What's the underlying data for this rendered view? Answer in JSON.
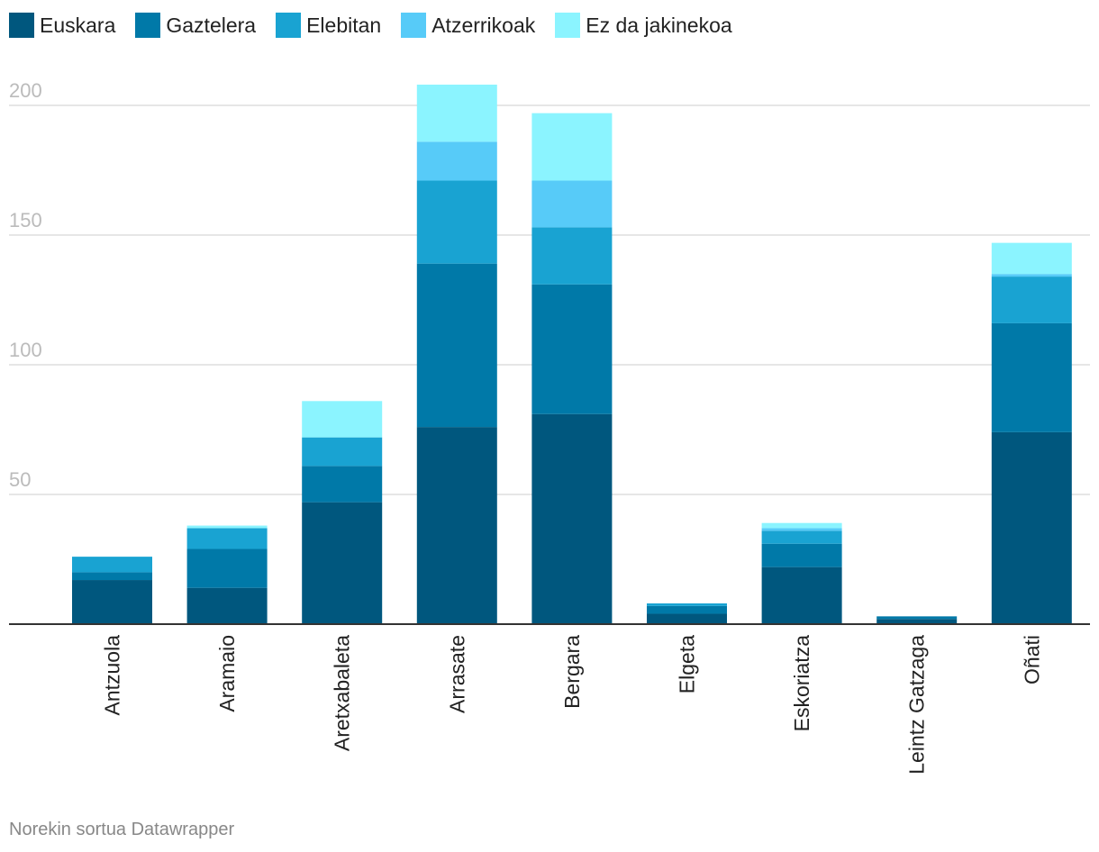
{
  "chart_data": {
    "type": "bar",
    "stacked": true,
    "categories": [
      "Antzuola",
      "Aramaio",
      "Aretxabaleta",
      "Arrasate",
      "Bergara",
      "Elgeta",
      "Eskoriatza",
      "Leintz Gatzaga",
      "Oñati"
    ],
    "series": [
      {
        "name": "Euskara",
        "color": "#00577e",
        "values": [
          17,
          14,
          47,
          76,
          81,
          4,
          22,
          2,
          74
        ]
      },
      {
        "name": "Gaztelera",
        "color": "#0079a8",
        "values": [
          3,
          15,
          14,
          63,
          50,
          3,
          9,
          1,
          42
        ]
      },
      {
        "name": "Elebitan",
        "color": "#19a3d2",
        "values": [
          6,
          8,
          11,
          32,
          22,
          1,
          5,
          0,
          18
        ]
      },
      {
        "name": "Atzerrikoak",
        "color": "#57cbf8",
        "values": [
          0,
          0,
          0,
          15,
          18,
          0,
          1,
          0,
          1
        ]
      },
      {
        "name": "Ez da jakinekoa",
        "color": "#8bf4ff",
        "values": [
          0,
          1,
          14,
          22,
          26,
          0,
          2,
          0,
          12
        ]
      }
    ],
    "yticks": [
      50,
      100,
      150,
      200
    ],
    "ylim": [
      0,
      208
    ],
    "grid": true,
    "legend_position": "top-left"
  },
  "footer": "Norekin sortua Datawrapper"
}
